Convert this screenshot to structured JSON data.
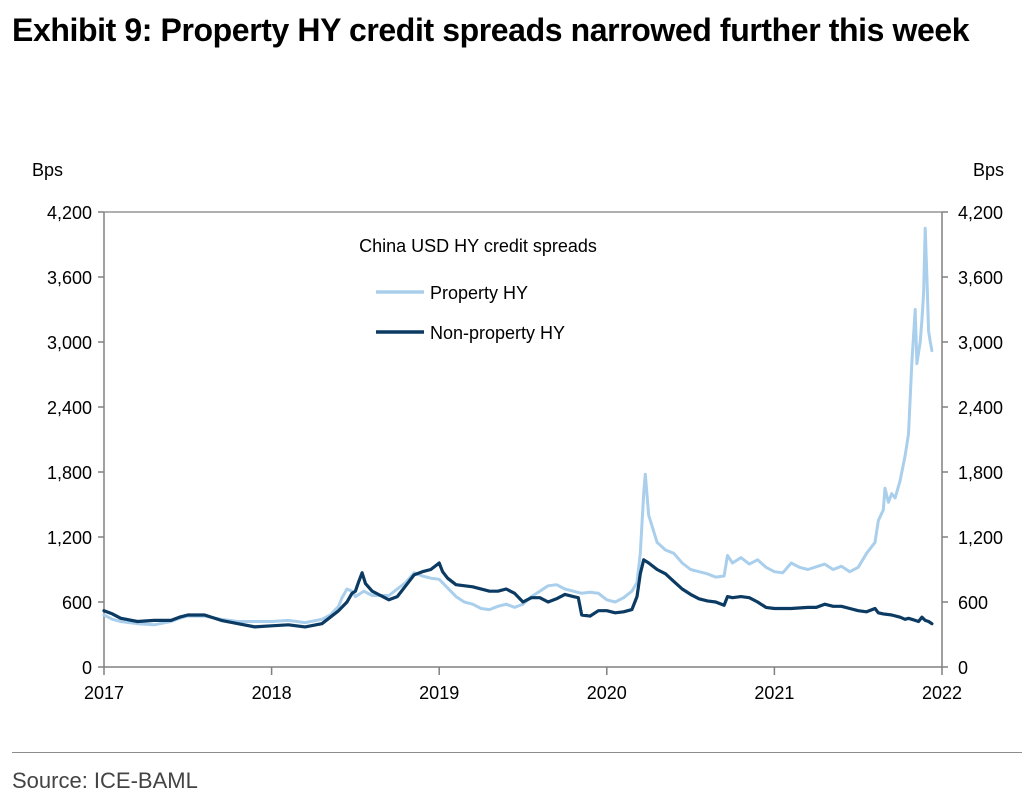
{
  "title": "Exhibit 9: Property HY credit spreads narrowed further this week",
  "source": "Source: ICE-BAML",
  "colors": {
    "property": "#a9cfec",
    "nonproperty": "#0b3a63",
    "axis": "#808080"
  },
  "chart_data": {
    "type": "line",
    "title": "China USD HY credit spreads",
    "ylabel_left": "Bps",
    "ylabel_right": "Bps",
    "ylim": [
      0,
      4200
    ],
    "yticks": [
      0,
      600,
      1200,
      1800,
      2400,
      3000,
      3600,
      4200
    ],
    "ytick_labels": [
      "0",
      "600",
      "1,200",
      "1,800",
      "2,400",
      "3,000",
      "3,600",
      "4,200"
    ],
    "xlim": [
      2017,
      2022
    ],
    "xticks": [
      2017,
      2018,
      2019,
      2020,
      2021,
      2022
    ],
    "xtick_labels": [
      "2017",
      "2018",
      "2019",
      "2020",
      "2021",
      "2022"
    ],
    "legend_title": "China USD HY credit spreads",
    "legend": [
      "Property HY",
      "Non-property HY"
    ],
    "series": [
      {
        "name": "Property HY",
        "color": "#a9cfec",
        "points": [
          [
            2017.0,
            480
          ],
          [
            2017.05,
            440
          ],
          [
            2017.1,
            420
          ],
          [
            2017.2,
            400
          ],
          [
            2017.3,
            390
          ],
          [
            2017.4,
            420
          ],
          [
            2017.45,
            450
          ],
          [
            2017.5,
            470
          ],
          [
            2017.6,
            470
          ],
          [
            2017.7,
            440
          ],
          [
            2017.8,
            420
          ],
          [
            2017.9,
            420
          ],
          [
            2018.0,
            420
          ],
          [
            2018.1,
            430
          ],
          [
            2018.2,
            410
          ],
          [
            2018.3,
            440
          ],
          [
            2018.35,
            480
          ],
          [
            2018.4,
            560
          ],
          [
            2018.42,
            640
          ],
          [
            2018.45,
            720
          ],
          [
            2018.48,
            700
          ],
          [
            2018.5,
            650
          ],
          [
            2018.55,
            700
          ],
          [
            2018.6,
            660
          ],
          [
            2018.7,
            660
          ],
          [
            2018.75,
            720
          ],
          [
            2018.8,
            780
          ],
          [
            2018.85,
            870
          ],
          [
            2018.9,
            840
          ],
          [
            2018.95,
            820
          ],
          [
            2019.0,
            810
          ],
          [
            2019.05,
            730
          ],
          [
            2019.1,
            650
          ],
          [
            2019.15,
            600
          ],
          [
            2019.2,
            580
          ],
          [
            2019.25,
            540
          ],
          [
            2019.3,
            530
          ],
          [
            2019.35,
            560
          ],
          [
            2019.4,
            580
          ],
          [
            2019.45,
            550
          ],
          [
            2019.5,
            580
          ],
          [
            2019.55,
            650
          ],
          [
            2019.6,
            700
          ],
          [
            2019.65,
            750
          ],
          [
            2019.7,
            760
          ],
          [
            2019.75,
            720
          ],
          [
            2019.8,
            700
          ],
          [
            2019.85,
            680
          ],
          [
            2019.9,
            690
          ],
          [
            2019.95,
            680
          ],
          [
            2020.0,
            620
          ],
          [
            2020.05,
            600
          ],
          [
            2020.1,
            640
          ],
          [
            2020.15,
            700
          ],
          [
            2020.18,
            780
          ],
          [
            2020.2,
            1050
          ],
          [
            2020.22,
            1600
          ],
          [
            2020.23,
            1780
          ],
          [
            2020.25,
            1400
          ],
          [
            2020.27,
            1300
          ],
          [
            2020.3,
            1150
          ],
          [
            2020.35,
            1080
          ],
          [
            2020.4,
            1050
          ],
          [
            2020.45,
            960
          ],
          [
            2020.5,
            900
          ],
          [
            2020.55,
            880
          ],
          [
            2020.6,
            860
          ],
          [
            2020.65,
            830
          ],
          [
            2020.7,
            840
          ],
          [
            2020.72,
            1030
          ],
          [
            2020.75,
            960
          ],
          [
            2020.8,
            1010
          ],
          [
            2020.85,
            950
          ],
          [
            2020.9,
            990
          ],
          [
            2020.95,
            920
          ],
          [
            2021.0,
            880
          ],
          [
            2021.05,
            870
          ],
          [
            2021.1,
            960
          ],
          [
            2021.15,
            920
          ],
          [
            2021.2,
            900
          ],
          [
            2021.3,
            950
          ],
          [
            2021.35,
            900
          ],
          [
            2021.4,
            930
          ],
          [
            2021.45,
            880
          ],
          [
            2021.5,
            920
          ],
          [
            2021.55,
            1050
          ],
          [
            2021.6,
            1150
          ],
          [
            2021.62,
            1350
          ],
          [
            2021.65,
            1450
          ],
          [
            2021.66,
            1650
          ],
          [
            2021.68,
            1520
          ],
          [
            2021.7,
            1600
          ],
          [
            2021.72,
            1560
          ],
          [
            2021.75,
            1720
          ],
          [
            2021.78,
            1950
          ],
          [
            2021.8,
            2150
          ],
          [
            2021.82,
            2800
          ],
          [
            2021.84,
            3300
          ],
          [
            2021.85,
            2800
          ],
          [
            2021.87,
            3000
          ],
          [
            2021.88,
            3200
          ],
          [
            2021.89,
            3450
          ],
          [
            2021.9,
            4050
          ],
          [
            2021.91,
            3600
          ],
          [
            2021.92,
            3100
          ],
          [
            2021.93,
            3000
          ],
          [
            2021.94,
            2920
          ]
        ]
      },
      {
        "name": "Non-property HY",
        "color": "#0b3a63",
        "points": [
          [
            2017.0,
            520
          ],
          [
            2017.05,
            490
          ],
          [
            2017.1,
            450
          ],
          [
            2017.2,
            420
          ],
          [
            2017.3,
            430
          ],
          [
            2017.4,
            430
          ],
          [
            2017.45,
            460
          ],
          [
            2017.5,
            480
          ],
          [
            2017.6,
            480
          ],
          [
            2017.7,
            430
          ],
          [
            2017.8,
            400
          ],
          [
            2017.9,
            370
          ],
          [
            2018.0,
            380
          ],
          [
            2018.1,
            390
          ],
          [
            2018.2,
            370
          ],
          [
            2018.3,
            400
          ],
          [
            2018.35,
            460
          ],
          [
            2018.4,
            520
          ],
          [
            2018.45,
            600
          ],
          [
            2018.48,
            680
          ],
          [
            2018.5,
            700
          ],
          [
            2018.52,
            790
          ],
          [
            2018.54,
            870
          ],
          [
            2018.56,
            770
          ],
          [
            2018.6,
            700
          ],
          [
            2018.7,
            620
          ],
          [
            2018.75,
            650
          ],
          [
            2018.8,
            750
          ],
          [
            2018.85,
            850
          ],
          [
            2018.9,
            880
          ],
          [
            2018.95,
            900
          ],
          [
            2019.0,
            960
          ],
          [
            2019.02,
            880
          ],
          [
            2019.05,
            820
          ],
          [
            2019.1,
            760
          ],
          [
            2019.2,
            740
          ],
          [
            2019.3,
            700
          ],
          [
            2019.35,
            700
          ],
          [
            2019.4,
            720
          ],
          [
            2019.45,
            680
          ],
          [
            2019.5,
            600
          ],
          [
            2019.55,
            640
          ],
          [
            2019.6,
            640
          ],
          [
            2019.65,
            600
          ],
          [
            2019.7,
            630
          ],
          [
            2019.75,
            670
          ],
          [
            2019.8,
            650
          ],
          [
            2019.83,
            640
          ],
          [
            2019.85,
            480
          ],
          [
            2019.9,
            470
          ],
          [
            2019.95,
            520
          ],
          [
            2020.0,
            520
          ],
          [
            2020.05,
            500
          ],
          [
            2020.1,
            510
          ],
          [
            2020.15,
            530
          ],
          [
            2020.18,
            650
          ],
          [
            2020.2,
            860
          ],
          [
            2020.22,
            990
          ],
          [
            2020.25,
            960
          ],
          [
            2020.3,
            900
          ],
          [
            2020.35,
            860
          ],
          [
            2020.4,
            790
          ],
          [
            2020.45,
            720
          ],
          [
            2020.5,
            670
          ],
          [
            2020.55,
            630
          ],
          [
            2020.6,
            610
          ],
          [
            2020.65,
            600
          ],
          [
            2020.7,
            570
          ],
          [
            2020.72,
            650
          ],
          [
            2020.75,
            640
          ],
          [
            2020.8,
            650
          ],
          [
            2020.85,
            640
          ],
          [
            2020.9,
            600
          ],
          [
            2020.95,
            550
          ],
          [
            2021.0,
            540
          ],
          [
            2021.1,
            540
          ],
          [
            2021.2,
            550
          ],
          [
            2021.25,
            550
          ],
          [
            2021.3,
            580
          ],
          [
            2021.35,
            560
          ],
          [
            2021.4,
            560
          ],
          [
            2021.45,
            540
          ],
          [
            2021.5,
            520
          ],
          [
            2021.55,
            510
          ],
          [
            2021.6,
            540
          ],
          [
            2021.62,
            500
          ],
          [
            2021.65,
            490
          ],
          [
            2021.7,
            480
          ],
          [
            2021.75,
            460
          ],
          [
            2021.78,
            440
          ],
          [
            2021.8,
            450
          ],
          [
            2021.82,
            440
          ],
          [
            2021.84,
            430
          ],
          [
            2021.86,
            420
          ],
          [
            2021.88,
            460
          ],
          [
            2021.9,
            430
          ],
          [
            2021.92,
            420
          ],
          [
            2021.94,
            400
          ]
        ]
      }
    ]
  }
}
